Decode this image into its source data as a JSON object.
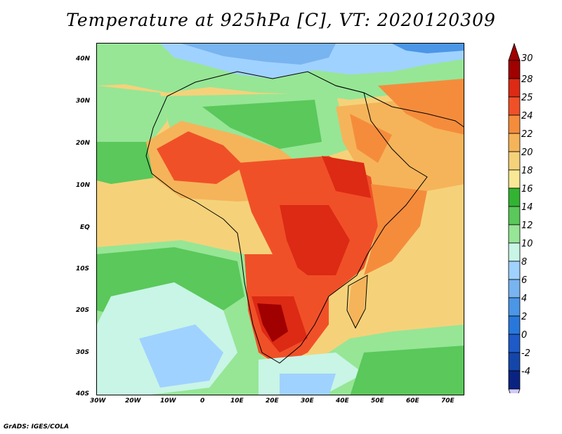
{
  "title": "Temperature at 925hPa [C], VT: 2020120309",
  "footer": "GrADS: IGES/COLA",
  "x_ticks": [
    "30W",
    "20W",
    "10W",
    "0",
    "10E",
    "20E",
    "30E",
    "40E",
    "50E",
    "60E",
    "70E"
  ],
  "y_ticks": [
    "40N",
    "30N",
    "20N",
    "10N",
    "EQ",
    "10S",
    "20S",
    "30S",
    "40S"
  ],
  "colorbar": {
    "labels": [
      "30",
      "28",
      "25",
      "24",
      "22",
      "20",
      "18",
      "16",
      "14",
      "12",
      "10",
      "8",
      "6",
      "4",
      "2",
      "0",
      "-2",
      "-4"
    ],
    "colors": [
      "#a00000",
      "#dc2a14",
      "#f05028",
      "#f58c3c",
      "#f5b45a",
      "#f5d27a",
      "#f8e896",
      "#32b432",
      "#5ac85a",
      "#96e696",
      "#c8f5e6",
      "#a0d2ff",
      "#78b4f0",
      "#4b96e6",
      "#2878dc",
      "#1e5ac8",
      "#1446aa",
      "#0a2382"
    ],
    "top_arrow_color": "#a00000",
    "bottom_arrow_color": "#d2c8ff"
  }
}
